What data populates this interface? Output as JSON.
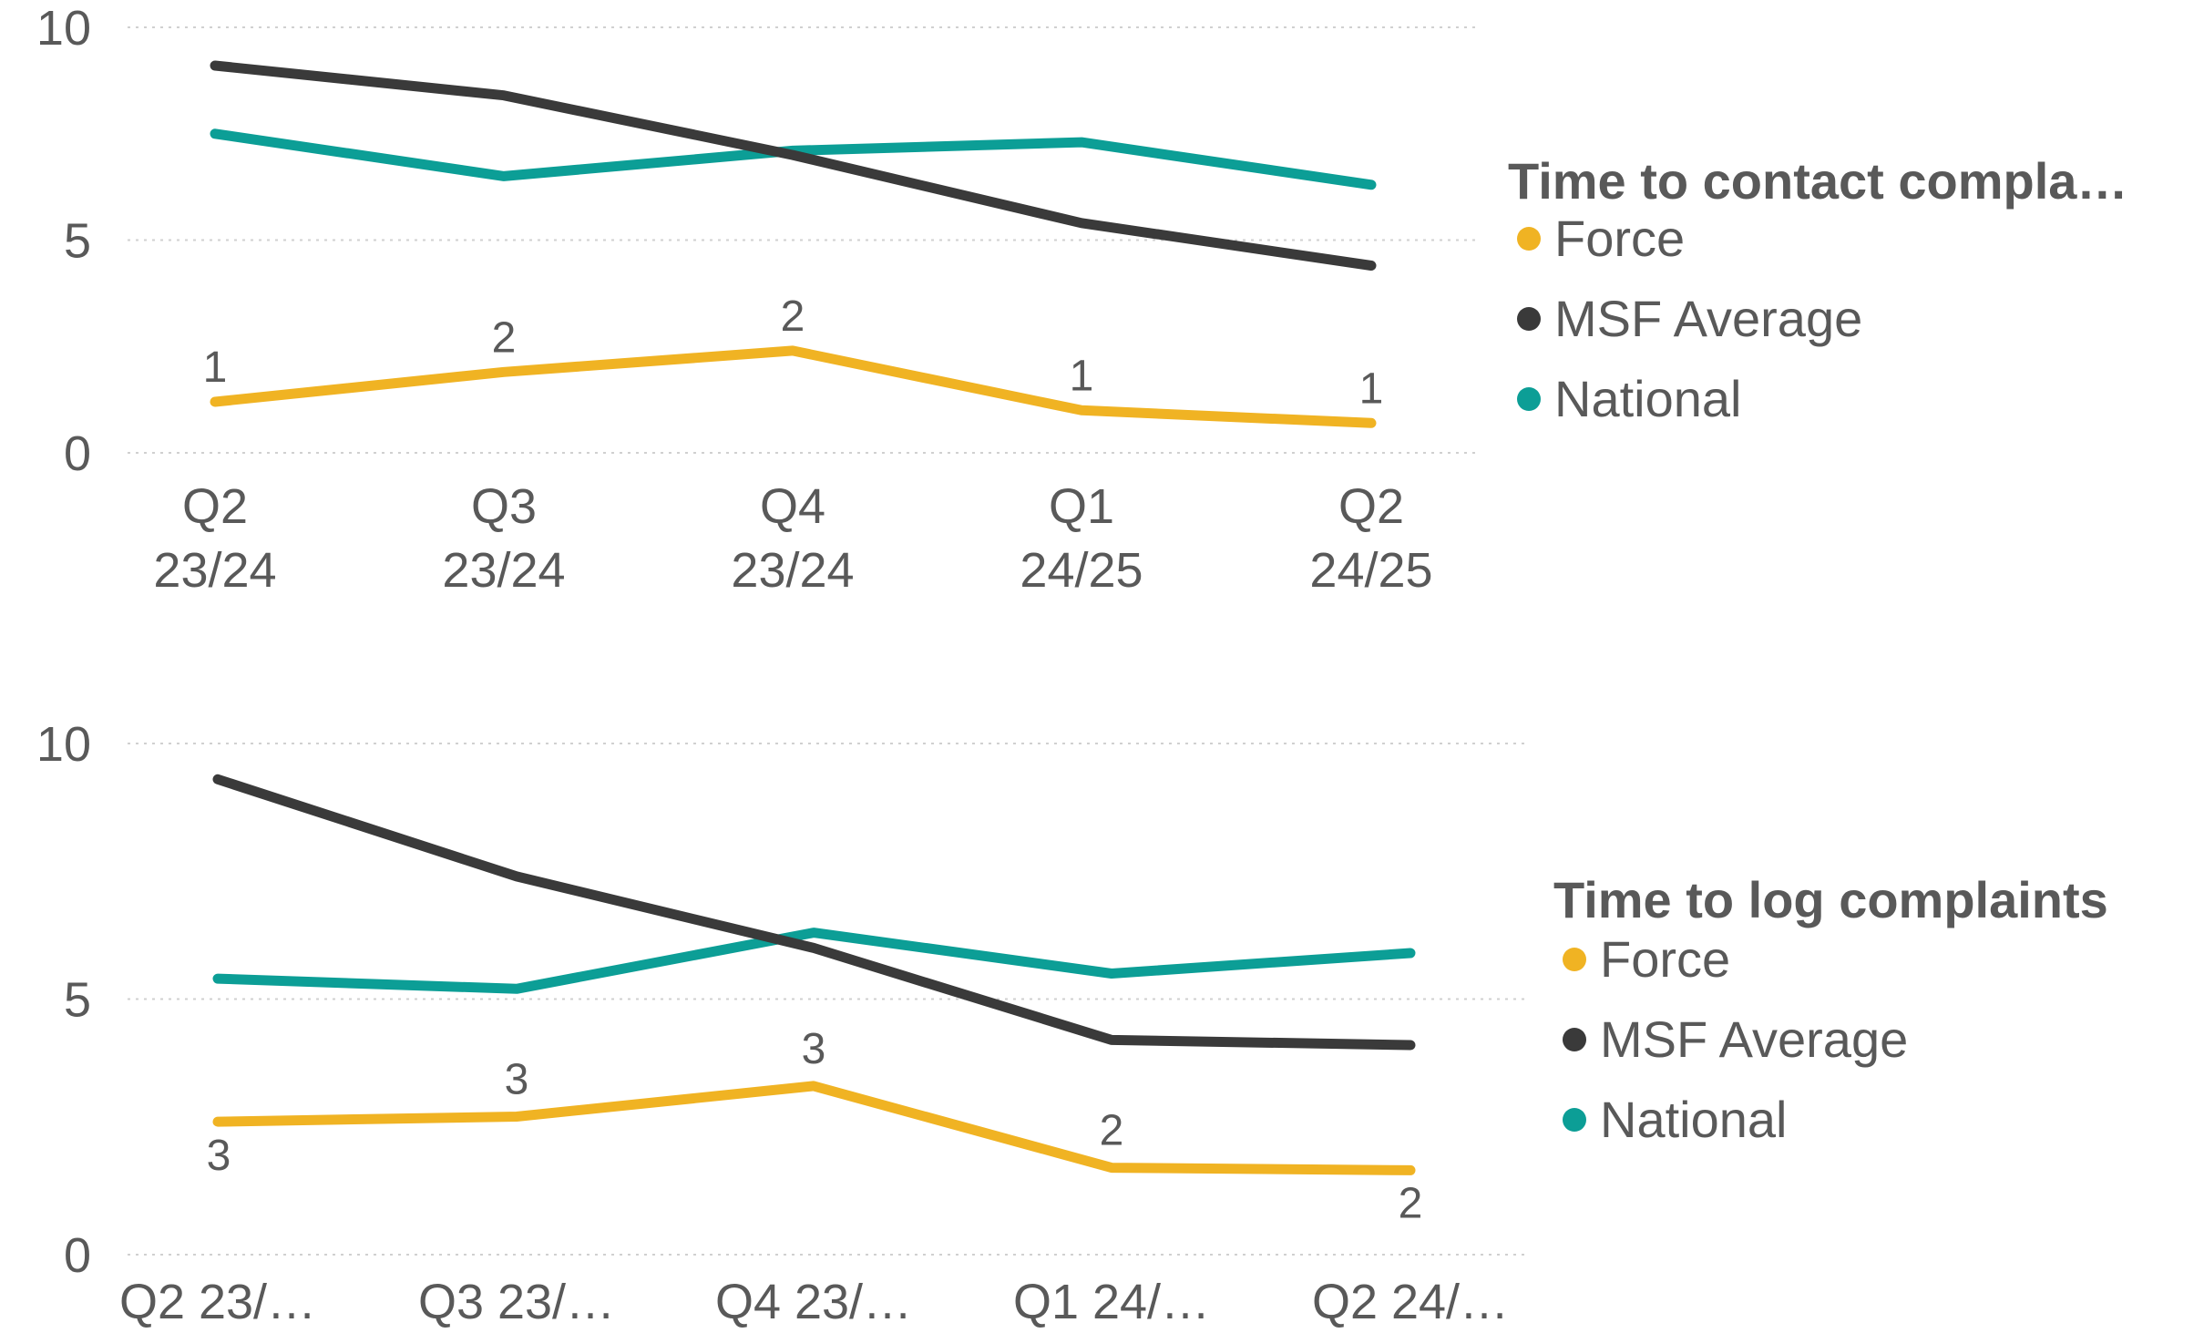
{
  "chart_data": [
    {
      "type": "line",
      "categories": [
        "Q2 23/24",
        "Q3 23/24",
        "Q4 23/24",
        "Q1 24/25",
        "Q2 24/25"
      ],
      "category_display": [
        [
          "Q2",
          "23/24"
        ],
        [
          "Q3",
          "23/24"
        ],
        [
          "Q4",
          "23/24"
        ],
        [
          "Q1",
          "24/25"
        ],
        [
          "Q2",
          "24/25"
        ]
      ],
      "ylim": [
        0,
        10
      ],
      "yticks": [
        "0",
        "5",
        "10"
      ],
      "grid": true,
      "legend": {
        "title": "Time to contact compla…",
        "placement": "right"
      },
      "series": [
        {
          "name": "Force",
          "color": "#F0B323",
          "values": [
            1.2,
            1.9,
            2.4,
            1.0,
            0.7
          ],
          "data_labels": [
            "1",
            "2",
            "2",
            "1",
            "1"
          ]
        },
        {
          "name": "MSF Average",
          "color": "#3A3A3A",
          "values": [
            9.1,
            8.4,
            7.0,
            5.4,
            4.4
          ]
        },
        {
          "name": "National",
          "color": "#0C9E96",
          "values": [
            7.5,
            6.5,
            7.1,
            7.3,
            6.3
          ]
        }
      ]
    },
    {
      "type": "line",
      "categories": [
        "Q2 23/…",
        "Q3 23/…",
        "Q4 23/…",
        "Q1 24/…",
        "Q2 24/…"
      ],
      "ylim": [
        0,
        10
      ],
      "yticks": [
        "0",
        "5",
        "10"
      ],
      "grid": true,
      "legend": {
        "title": "Time to log complaints",
        "placement": "right"
      },
      "series": [
        {
          "name": "Force",
          "color": "#F0B323",
          "values": [
            2.6,
            2.7,
            3.3,
            1.7,
            1.65
          ],
          "data_labels": [
            "3",
            "3",
            "3",
            "2",
            "2"
          ]
        },
        {
          "name": "MSF Average",
          "color": "#3A3A3A",
          "values": [
            9.3,
            7.4,
            6.0,
            4.2,
            4.1
          ]
        },
        {
          "name": "National",
          "color": "#0C9E96",
          "values": [
            5.4,
            5.2,
            6.3,
            5.5,
            5.9
          ]
        }
      ]
    }
  ]
}
